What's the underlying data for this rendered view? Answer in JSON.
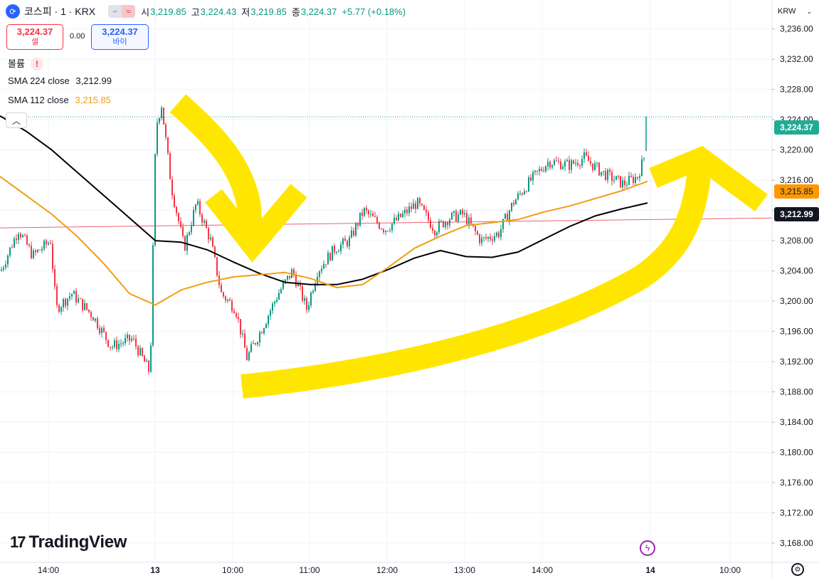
{
  "header": {
    "symbol_icon": "refresh-icon",
    "symbol_text": "코스피 · 1 · KRX",
    "ohlc": [
      {
        "label": "시",
        "value": "3,219.85"
      },
      {
        "label": "고",
        "value": "3,224.43"
      },
      {
        "label": "저",
        "value": "3,219.85"
      },
      {
        "label": "종",
        "value": "3,224.37"
      }
    ],
    "change": "+5.77 (+0.18%)"
  },
  "trade": {
    "sell_price": "3,224.37",
    "sell_label": "셀",
    "spread": "0.00",
    "buy_price": "3,224.37",
    "buy_label": "바이"
  },
  "indicators": {
    "volume_label": "볼륨",
    "volume_warning": "!",
    "sma224_label": "SMA 224 close",
    "sma224_value": "3,212.99",
    "sma112_label": "SMA 112 close",
    "sma112_value": "3,215.85"
  },
  "currency": "KRW",
  "price_badges": {
    "last": "3,224.37",
    "sma112": "3,215.85",
    "sma224": "3,212.99"
  },
  "branding": "TradingView",
  "colors": {
    "up": "#089981",
    "down": "#f23645",
    "sma112": "#f39c12",
    "sma224": "#000000",
    "annotation": "#ffe600",
    "hline": "#f06070",
    "last_line": "#22ab94"
  },
  "chart_data": {
    "type": "line",
    "y_axis": {
      "ticks": [
        "3,236.00",
        "3,232.00",
        "3,228.00",
        "3,224.00",
        "3,220.00",
        "3,216.00",
        "3,212.00",
        "3,208.00",
        "3,204.00",
        "3,200.00",
        "3,196.00",
        "3,192.00",
        "3,188.00",
        "3,184.00",
        "3,180.00",
        "3,176.00",
        "3,172.00",
        "3,168.00"
      ],
      "range": [
        3166.4,
        3237.2
      ]
    },
    "x_axis": {
      "ticks": [
        "14:00",
        "13",
        "10:00",
        "11:00",
        "12:00",
        "13:00",
        "14:00",
        "14",
        "10:00"
      ]
    },
    "last_price": 3224.37,
    "horizontal_line": {
      "from": 3209.7,
      "to": 3211.0
    },
    "series": [
      {
        "name": "SMA 224 close",
        "x": [
          0,
          0.04,
          0.08,
          0.12,
          0.16,
          0.2,
          0.24,
          0.28,
          0.32,
          0.36,
          0.4,
          0.44,
          0.48,
          0.52,
          0.56,
          0.6,
          0.64,
          0.68,
          0.72,
          0.76,
          0.8,
          0.84,
          0.88,
          0.92,
          0.96,
          1.0
        ],
        "values": [
          3224.5,
          3222.5,
          3220,
          3217,
          3214,
          3211,
          3208,
          3207.8,
          3206.8,
          3205.2,
          3203.7,
          3202.5,
          3202.2,
          3202.2,
          3202.9,
          3204.2,
          3205.7,
          3206.7,
          3205.9,
          3205.8,
          3206.5,
          3208.2,
          3209.9,
          3211.3,
          3212.2,
          3212.99
        ]
      },
      {
        "name": "SMA 112 close",
        "x": [
          0,
          0.04,
          0.08,
          0.12,
          0.16,
          0.2,
          0.24,
          0.28,
          0.32,
          0.36,
          0.4,
          0.44,
          0.48,
          0.52,
          0.56,
          0.6,
          0.64,
          0.68,
          0.72,
          0.76,
          0.8,
          0.84,
          0.88,
          0.92,
          0.96,
          1.0
        ],
        "values": [
          3216.5,
          3214,
          3211.5,
          3208.5,
          3205,
          3201,
          3199.5,
          3201.5,
          3202.5,
          3203.2,
          3203.5,
          3203.8,
          3203,
          3201.8,
          3202.2,
          3204.5,
          3207,
          3208.6,
          3210,
          3210.4,
          3210.8,
          3211.8,
          3212.6,
          3213.6,
          3214.6,
          3215.85
        ]
      }
    ]
  }
}
